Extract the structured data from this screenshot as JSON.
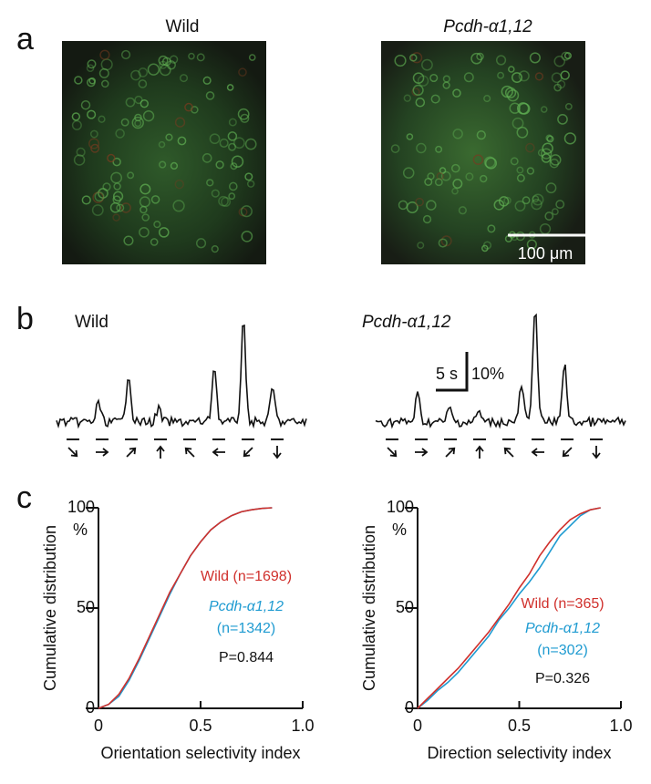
{
  "panel_a": {
    "label": "a",
    "titles": [
      "Wild",
      "Pcdh-α1,12"
    ],
    "scale_bar": "100 μm"
  },
  "panel_b": {
    "label": "b",
    "titles": [
      "Wild",
      "Pcdh-α1,12"
    ],
    "scale_time": "5 s",
    "scale_amplitude": "10%"
  },
  "panel_c": {
    "label": "c"
  },
  "chart_data": [
    {
      "type": "line",
      "xlabel": "Orientation selectivity index",
      "ylabel": "Cumulative distribution",
      "yunit": "%",
      "annotation": "P=0.844",
      "x": [
        0,
        0.05,
        0.1,
        0.15,
        0.2,
        0.25,
        0.3,
        0.35,
        0.4,
        0.45,
        0.5,
        0.55,
        0.6,
        0.65,
        0.7,
        0.75,
        0.8,
        0.85
      ],
      "series": [
        {
          "name": "Wild",
          "n_label": "(n=1698)",
          "color": "#d0302c",
          "values": [
            0,
            2,
            7,
            15,
            25,
            36,
            47,
            58,
            67,
            76,
            83,
            89,
            93,
            96,
            98,
            99,
            99.7,
            100
          ]
        },
        {
          "name": "Pcdh-α1,12",
          "n_label": "(n=1342)",
          "color": "#1f9bd1",
          "values": [
            0,
            2,
            6,
            14,
            24,
            35,
            46,
            57,
            67,
            76,
            83,
            89,
            93,
            96,
            98,
            99,
            99.7,
            100
          ]
        }
      ],
      "xlim": [
        0,
        1
      ],
      "ylim": [
        0,
        100
      ],
      "xticks": [
        0,
        0.5,
        {
          "value": 1,
          "label": "1.0"
        }
      ],
      "yticks": [
        0,
        50,
        100
      ]
    },
    {
      "type": "line",
      "xlabel": "Direction selectivity index",
      "ylabel": "Cumulative distribution",
      "yunit": "%",
      "annotation": "P=0.326",
      "x": [
        0,
        0.05,
        0.1,
        0.15,
        0.2,
        0.25,
        0.3,
        0.35,
        0.4,
        0.45,
        0.5,
        0.55,
        0.6,
        0.65,
        0.7,
        0.75,
        0.8,
        0.85,
        0.9
      ],
      "series": [
        {
          "name": "Wild",
          "n_label": "(n=365)",
          "color": "#d0302c",
          "values": [
            0,
            5,
            10,
            15,
            20,
            26,
            32,
            38,
            45,
            52,
            60,
            67,
            76,
            83,
            89,
            94,
            97,
            99,
            100
          ]
        },
        {
          "name": "Pcdh-α1,12",
          "n_label": "(n=302)",
          "color": "#1f9bd1",
          "values": [
            0,
            4,
            9,
            13,
            18,
            24,
            30,
            36,
            44,
            50,
            57,
            63,
            70,
            78,
            86,
            91,
            96,
            99,
            100
          ]
        }
      ],
      "xlim": [
        0,
        1
      ],
      "ylim": [
        0,
        100
      ],
      "xticks": [
        0,
        0.5,
        {
          "value": 1,
          "label": "1.0"
        }
      ],
      "yticks": [
        0,
        50,
        100
      ]
    }
  ]
}
